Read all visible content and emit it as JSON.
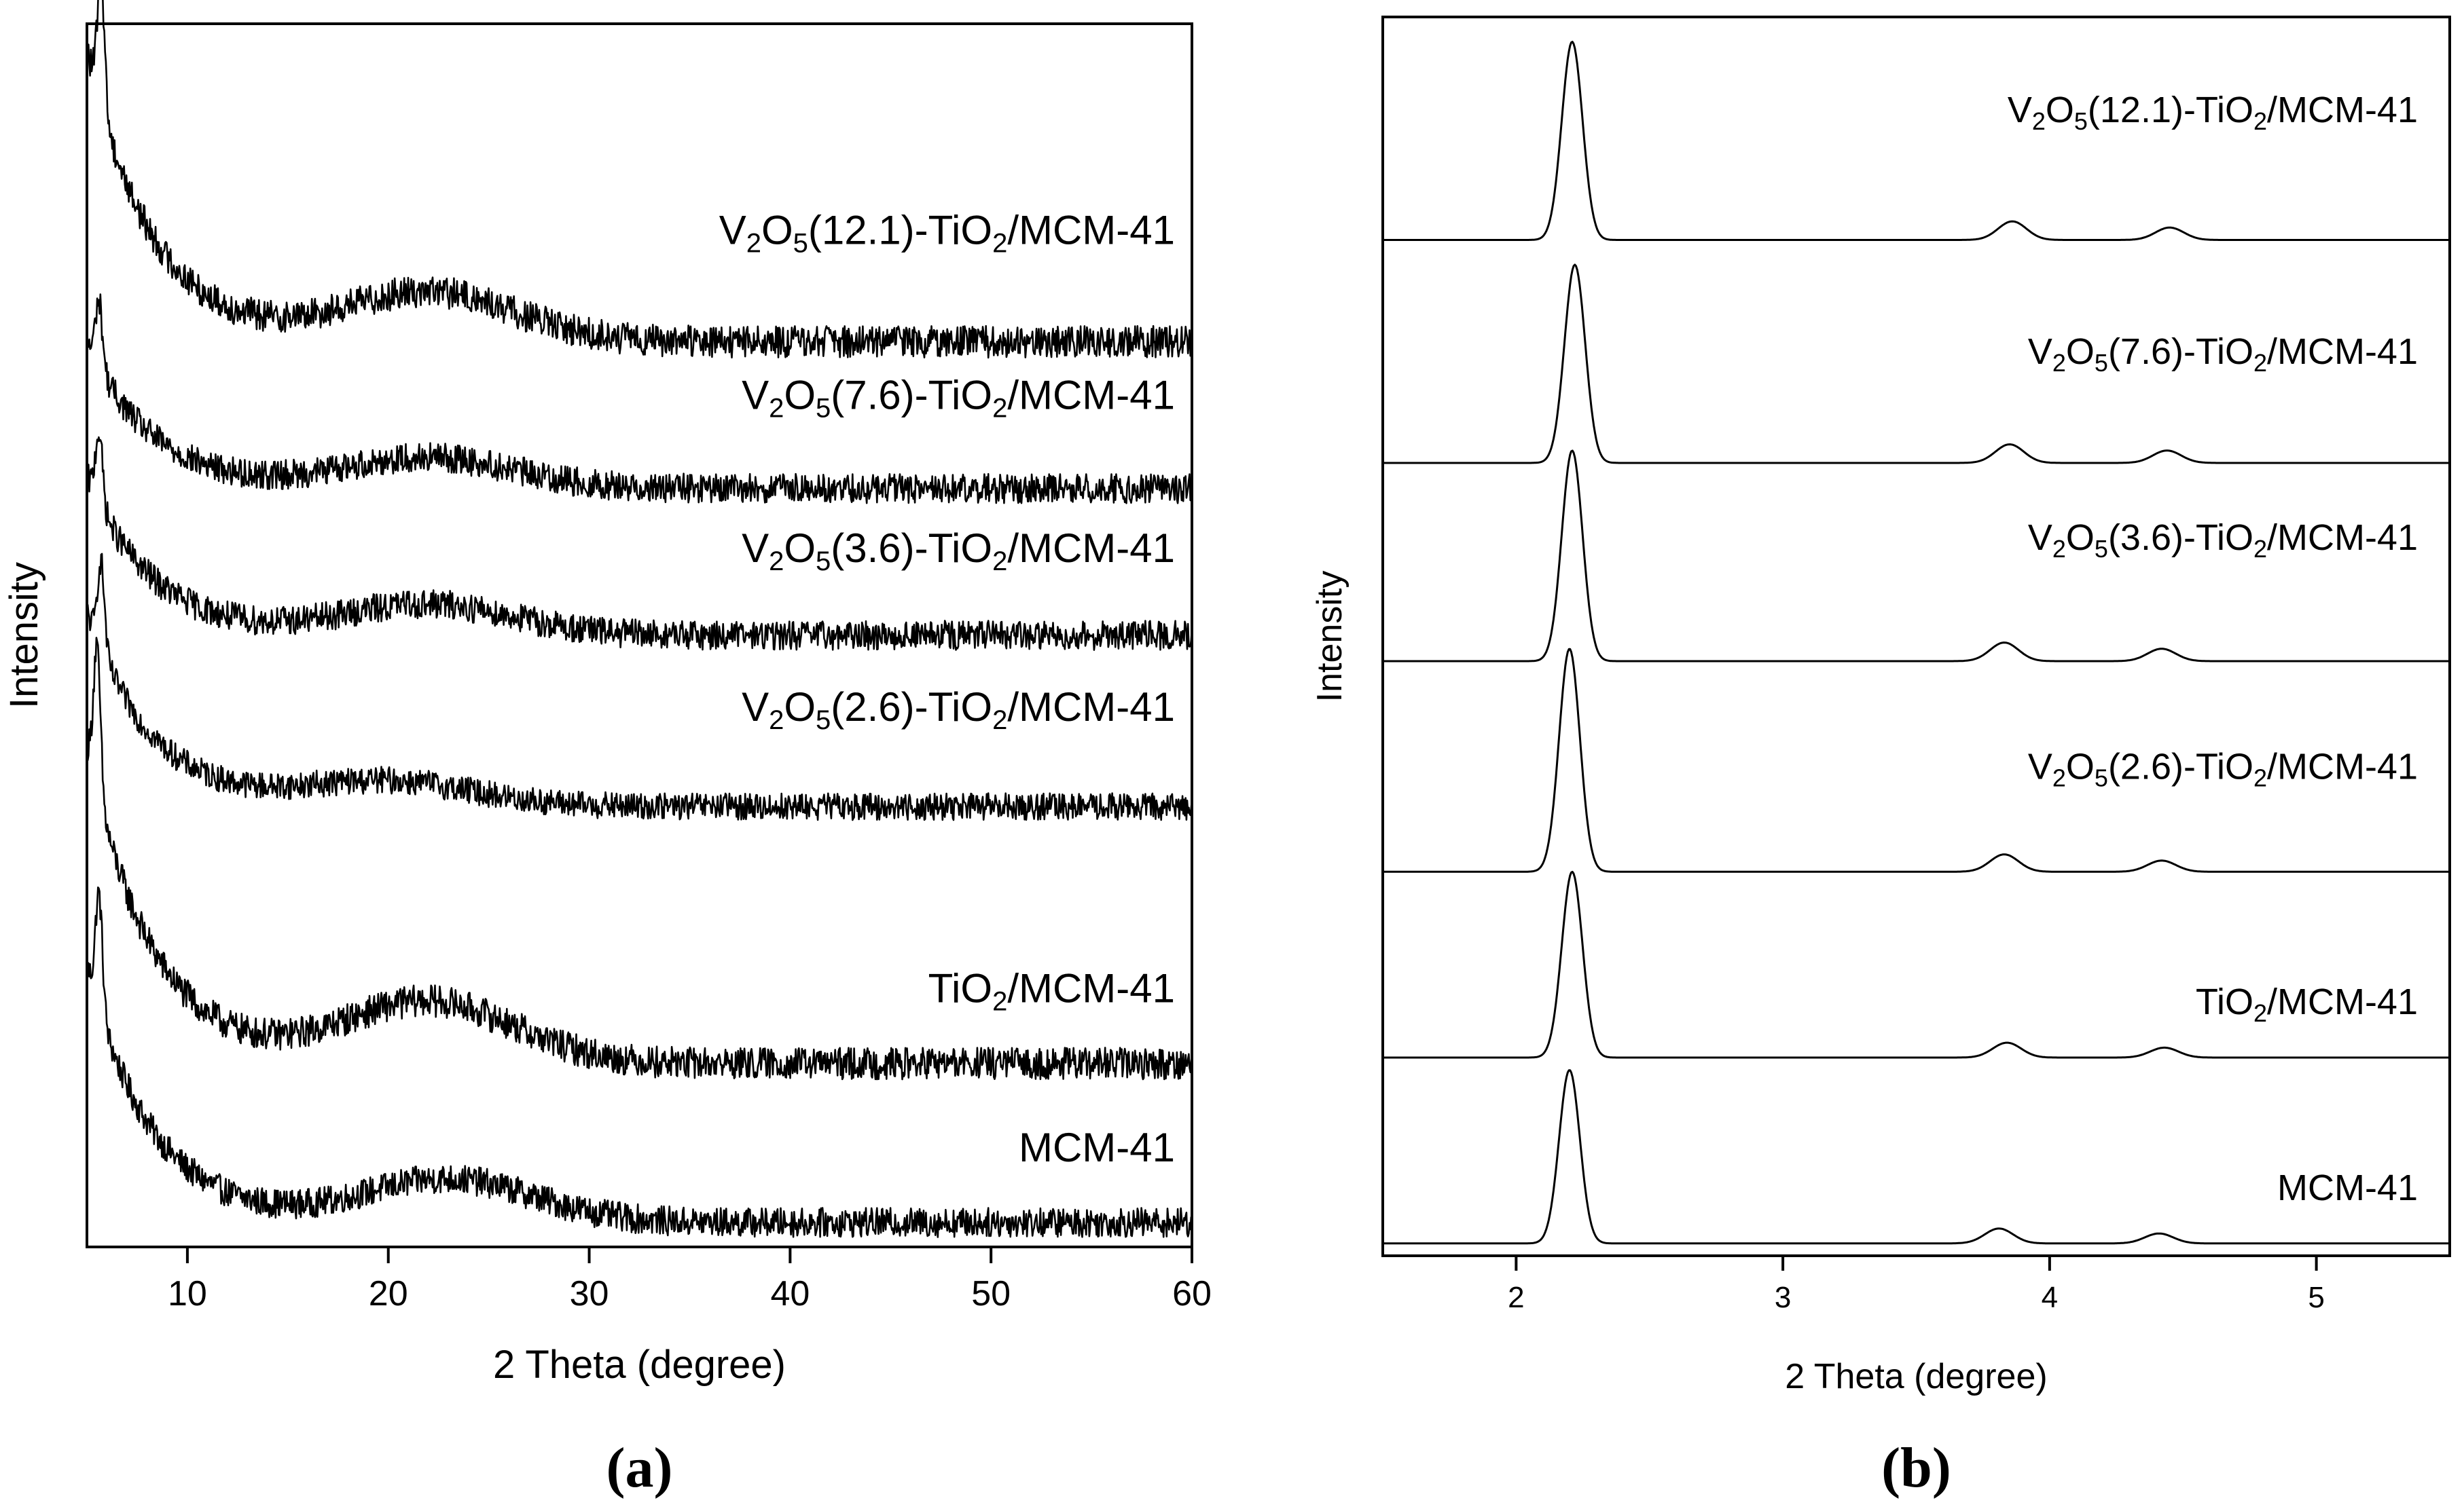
{
  "chart_data": [
    {
      "type": "line",
      "panel_label": "(a)",
      "xlabel": "2 Theta (degree)",
      "ylabel": "Intensity",
      "xlim": [
        5,
        60
      ],
      "xticks": [
        10,
        20,
        30,
        40,
        50,
        60
      ],
      "tick_labels": [
        "10",
        "20",
        "30",
        "40",
        "50",
        "60"
      ],
      "y_ticks_shown": false,
      "offset_stacked": true,
      "series": [
        {
          "name": "MCM-41",
          "label": {
            "base": "MCM-41",
            "parts": []
          },
          "baseline": 0.02,
          "peak_x": 5.6,
          "peak_height": 0.21,
          "broad_hump_center": 23,
          "broad_hump_height": 0.035,
          "noise": 0.012
        },
        {
          "name": "TiO2/MCM-41",
          "label": {
            "base": "",
            "parts": [
              [
                "TiO",
                ""
              ],
              [
                "2",
                "sub"
              ],
              [
                "/MCM-41",
                ""
              ]
            ]
          },
          "baseline": 0.15,
          "peak_x": 5.5,
          "peak_height": 0.26,
          "broad_hump_center": 22,
          "broad_hump_height": 0.05,
          "noise": 0.013
        },
        {
          "name": "V2O5(2.6)-TiO2/MCM-41",
          "label": {
            "base": "",
            "parts": [
              [
                "V",
                ""
              ],
              [
                "2",
                "sub"
              ],
              [
                "O",
                ""
              ],
              [
                "5",
                "sub"
              ],
              [
                "(2.6)-TiO",
                ""
              ],
              [
                "2",
                "sub"
              ],
              [
                "/MCM-41",
                ""
              ]
            ]
          },
          "baseline": 0.36,
          "peak_x": 5.7,
          "peak_height": 0.16,
          "broad_hump_center": 20,
          "broad_hump_height": 0.02,
          "noise": 0.011
        },
        {
          "name": "V2O5(3.6)-TiO2/MCM-41",
          "label": {
            "base": "",
            "parts": [
              [
                "V",
                ""
              ],
              [
                "2",
                "sub"
              ],
              [
                "O",
                ""
              ],
              [
                "5",
                "sub"
              ],
              [
                "(3.6)-TiO",
                ""
              ],
              [
                "2",
                "sub"
              ],
              [
                "/MCM-41",
                ""
              ]
            ]
          },
          "baseline": 0.5,
          "peak_x": 5.6,
          "peak_height": 0.13,
          "broad_hump_center": 22,
          "broad_hump_height": 0.025,
          "noise": 0.012
        },
        {
          "name": "V2O5(7.6)-TiO2/MCM-41",
          "label": {
            "base": "",
            "parts": [
              [
                "V",
                ""
              ],
              [
                "2",
                "sub"
              ],
              [
                "O",
                ""
              ],
              [
                "5",
                "sub"
              ],
              [
                "(7.6)-TiO",
                ""
              ],
              [
                "2",
                "sub"
              ],
              [
                "/MCM-41",
                ""
              ]
            ]
          },
          "baseline": 0.62,
          "peak_x": 5.6,
          "peak_height": 0.12,
          "broad_hump_center": 22,
          "broad_hump_height": 0.025,
          "noise": 0.012
        },
        {
          "name": "V2O5(12.1)-TiO2/MCM-41",
          "label": {
            "base": "",
            "parts": [
              [
                "V",
                ""
              ],
              [
                "2",
                "sub"
              ],
              [
                "O",
                ""
              ],
              [
                "5",
                "sub"
              ],
              [
                "(12.1)-TiO",
                ""
              ],
              [
                "2",
                "sub"
              ],
              [
                "/MCM-41",
                ""
              ]
            ]
          },
          "baseline": 0.74,
          "peak_x": 5.7,
          "peak_height": 0.24,
          "broad_hump_center": 22,
          "broad_hump_height": 0.04,
          "noise": 0.013
        }
      ]
    },
    {
      "type": "line",
      "panel_label": "(b)",
      "xlabel": "2 Theta (degree)",
      "ylabel": "Intensity",
      "xlim": [
        1.5,
        5.5
      ],
      "xticks": [
        2,
        3,
        4,
        5
      ],
      "tick_labels": [
        "2",
        "3",
        "4",
        "5"
      ],
      "y_ticks_shown": false,
      "offset_stacked": true,
      "series": [
        {
          "name": "MCM-41",
          "label": {
            "base": "MCM-41",
            "parts": []
          },
          "baseline": 0.01,
          "peaks": [
            {
              "x": 2.2,
              "height": 0.14
            },
            {
              "x": 3.81,
              "height": 0.012
            },
            {
              "x": 4.41,
              "height": 0.008
            }
          ]
        },
        {
          "name": "TiO2/MCM-41",
          "label": {
            "base": "",
            "parts": [
              [
                "TiO",
                ""
              ],
              [
                "2",
                "sub"
              ],
              [
                "/MCM-41",
                ""
              ]
            ]
          },
          "baseline": 0.16,
          "peaks": [
            {
              "x": 2.21,
              "height": 0.15
            },
            {
              "x": 3.84,
              "height": 0.012
            },
            {
              "x": 4.43,
              "height": 0.008
            }
          ]
        },
        {
          "name": "V2O5(2.6)-TiO2/MCM-41",
          "label": {
            "base": "",
            "parts": [
              [
                "V",
                ""
              ],
              [
                "2",
                "sub"
              ],
              [
                "O",
                ""
              ],
              [
                "5",
                "sub"
              ],
              [
                "(2.6)-TiO",
                ""
              ],
              [
                "2",
                "sub"
              ],
              [
                "/MCM-41",
                ""
              ]
            ]
          },
          "baseline": 0.31,
          "peaks": [
            {
              "x": 2.2,
              "height": 0.18
            },
            {
              "x": 3.83,
              "height": 0.014
            },
            {
              "x": 4.42,
              "height": 0.009
            }
          ]
        },
        {
          "name": "V2O5(3.6)-TiO2/MCM-41",
          "label": {
            "base": "",
            "parts": [
              [
                "V",
                ""
              ],
              [
                "2",
                "sub"
              ],
              [
                "O",
                ""
              ],
              [
                "5",
                "sub"
              ],
              [
                "(3.6)-TiO",
                ""
              ],
              [
                "2",
                "sub"
              ],
              [
                "/MCM-41",
                ""
              ]
            ]
          },
          "baseline": 0.48,
          "peaks": [
            {
              "x": 2.21,
              "height": 0.17
            },
            {
              "x": 3.83,
              "height": 0.015
            },
            {
              "x": 4.42,
              "height": 0.01
            }
          ]
        },
        {
          "name": "V2O5(7.6)-TiO2/MCM-41",
          "label": {
            "base": "",
            "parts": [
              [
                "V",
                ""
              ],
              [
                "2",
                "sub"
              ],
              [
                "O",
                ""
              ],
              [
                "5",
                "sub"
              ],
              [
                "(7.6)-TiO",
                ""
              ],
              [
                "2",
                "sub"
              ],
              [
                "/MCM-41",
                ""
              ]
            ]
          },
          "baseline": 0.64,
          "peaks": [
            {
              "x": 2.22,
              "height": 0.16
            },
            {
              "x": 3.85,
              "height": 0.015
            },
            {
              "x": 4.44,
              "height": 0.01
            }
          ]
        },
        {
          "name": "V2O5(12.1)-TiO2/MCM-41",
          "label": {
            "base": "",
            "parts": [
              [
                "V",
                ""
              ],
              [
                "2",
                "sub"
              ],
              [
                "O",
                ""
              ],
              [
                "5",
                "sub"
              ],
              [
                "(12.1)-TiO",
                ""
              ],
              [
                "2",
                "sub"
              ],
              [
                "/MCM-41",
                ""
              ]
            ]
          },
          "baseline": 0.82,
          "peaks": [
            {
              "x": 2.21,
              "height": 0.16
            },
            {
              "x": 3.86,
              "height": 0.015
            },
            {
              "x": 4.45,
              "height": 0.01
            }
          ]
        }
      ]
    }
  ]
}
